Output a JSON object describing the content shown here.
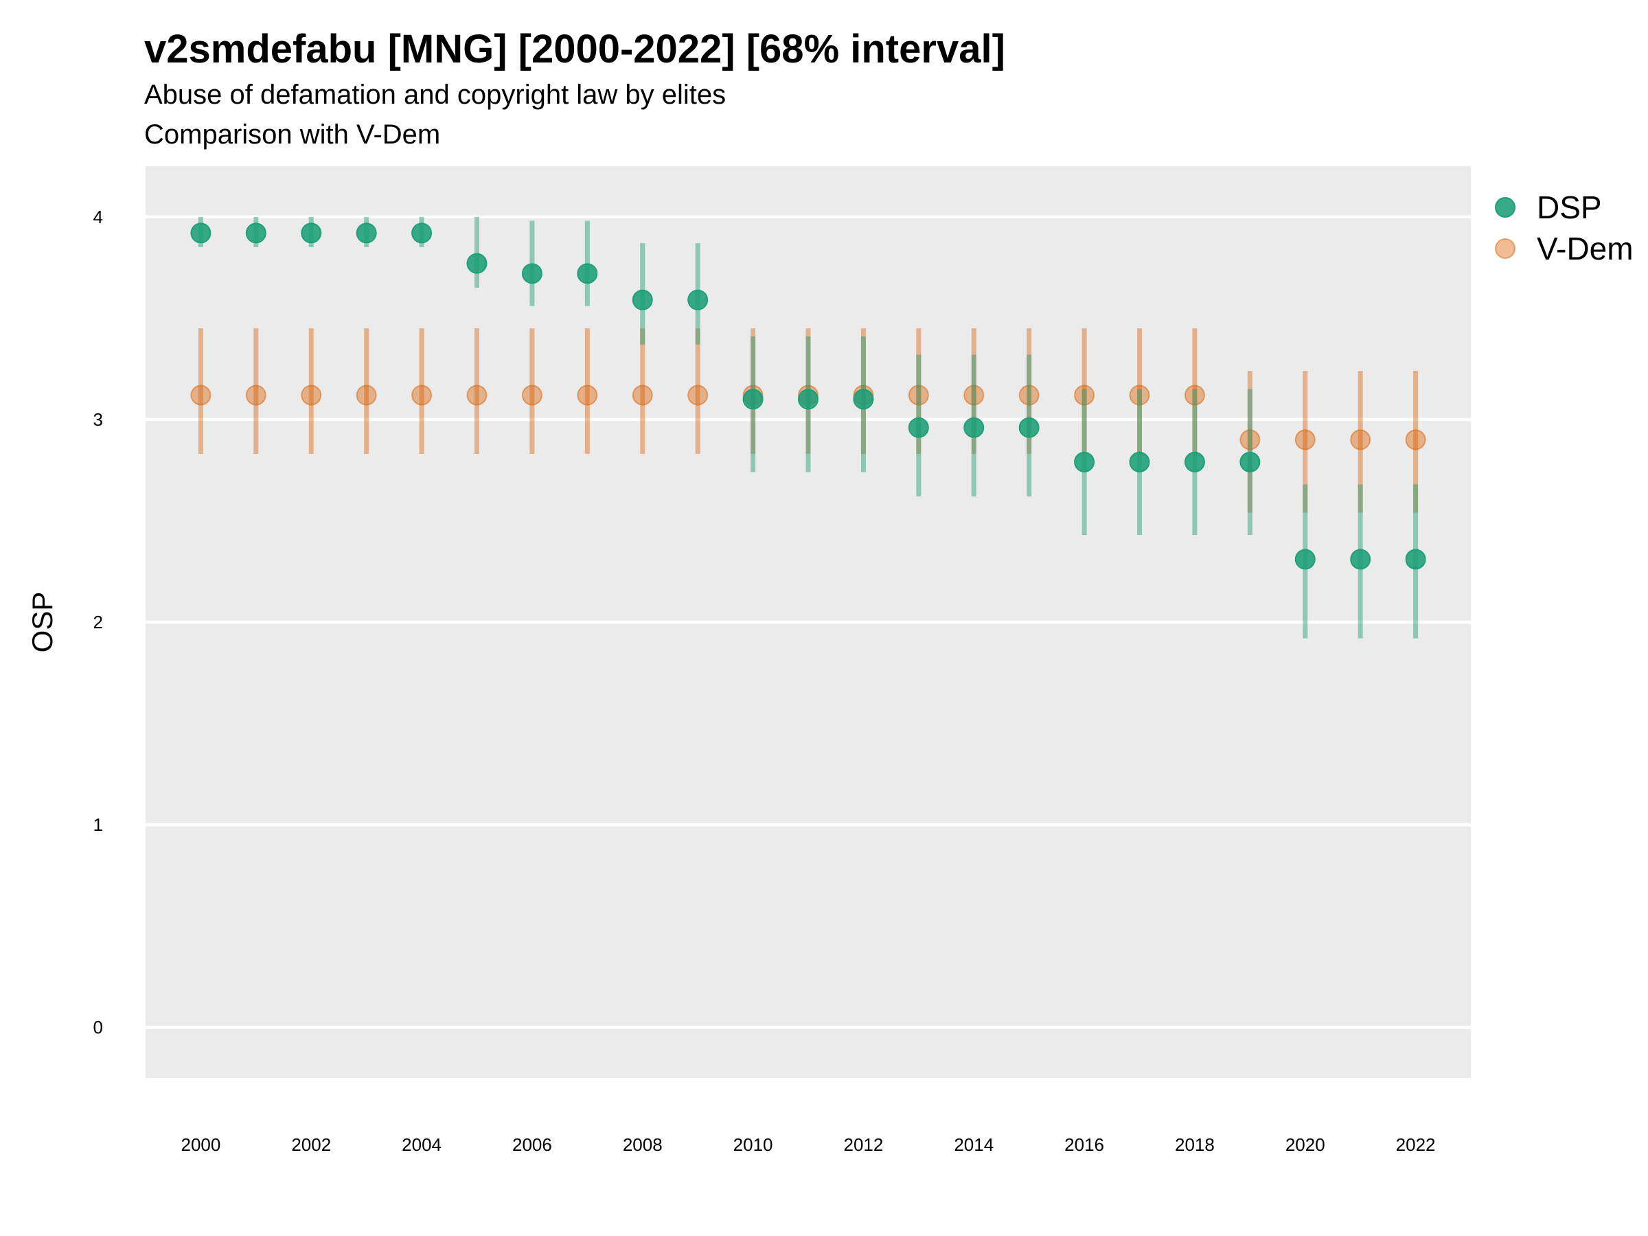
{
  "chart_data": {
    "type": "scatter",
    "title": "v2smdefabu [MNG] [2000-2022] [68% interval]",
    "subtitle": "Abuse of defamation and copyright law by elites",
    "caption_line": "Comparison with V-Dem",
    "ylabel": "OSP",
    "xlabel": "",
    "ylim": [
      -0.25,
      4.25
    ],
    "yticks": [
      0,
      1,
      2,
      3,
      4
    ],
    "xticks": [
      2000,
      2002,
      2004,
      2006,
      2008,
      2010,
      2012,
      2014,
      2016,
      2018,
      2020,
      2022
    ],
    "x": [
      2000,
      2001,
      2002,
      2003,
      2004,
      2005,
      2006,
      2007,
      2008,
      2009,
      2010,
      2011,
      2012,
      2013,
      2014,
      2015,
      2016,
      2017,
      2018,
      2019,
      2020,
      2021,
      2022
    ],
    "grid": true,
    "legend_position": "right",
    "series": [
      {
        "name": "DSP",
        "color": "#1b9e77",
        "values": [
          3.92,
          3.92,
          3.92,
          3.92,
          3.92,
          3.77,
          3.72,
          3.72,
          3.59,
          3.59,
          3.1,
          3.1,
          3.1,
          2.96,
          2.96,
          2.96,
          2.79,
          2.79,
          2.79,
          2.79,
          2.31,
          2.31,
          2.31
        ],
        "lower": [
          3.85,
          3.85,
          3.85,
          3.85,
          3.85,
          3.65,
          3.56,
          3.56,
          3.37,
          3.37,
          2.74,
          2.74,
          2.74,
          2.62,
          2.62,
          2.62,
          2.43,
          2.43,
          2.43,
          2.43,
          1.92,
          1.92,
          1.92
        ],
        "upper": [
          4.0,
          4.0,
          4.0,
          4.0,
          4.0,
          4.0,
          3.98,
          3.98,
          3.87,
          3.87,
          3.41,
          3.41,
          3.41,
          3.32,
          3.32,
          3.32,
          3.15,
          3.15,
          3.15,
          3.15,
          2.68,
          2.68,
          2.68
        ]
      },
      {
        "name": "V-Dem",
        "color": "#d95f02",
        "values": [
          3.12,
          3.12,
          3.12,
          3.12,
          3.12,
          3.12,
          3.12,
          3.12,
          3.12,
          3.12,
          3.12,
          3.12,
          3.12,
          3.12,
          3.12,
          3.12,
          3.12,
          3.12,
          3.12,
          2.9,
          2.9,
          2.9,
          2.9
        ],
        "lower": [
          2.83,
          2.83,
          2.83,
          2.83,
          2.83,
          2.83,
          2.83,
          2.83,
          2.83,
          2.83,
          2.83,
          2.83,
          2.83,
          2.83,
          2.83,
          2.83,
          2.83,
          2.83,
          2.83,
          2.54,
          2.54,
          2.54,
          2.54
        ],
        "upper": [
          3.45,
          3.45,
          3.45,
          3.45,
          3.45,
          3.45,
          3.45,
          3.45,
          3.45,
          3.45,
          3.45,
          3.45,
          3.45,
          3.45,
          3.45,
          3.45,
          3.45,
          3.45,
          3.45,
          3.24,
          3.24,
          3.24,
          3.24
        ]
      }
    ]
  }
}
